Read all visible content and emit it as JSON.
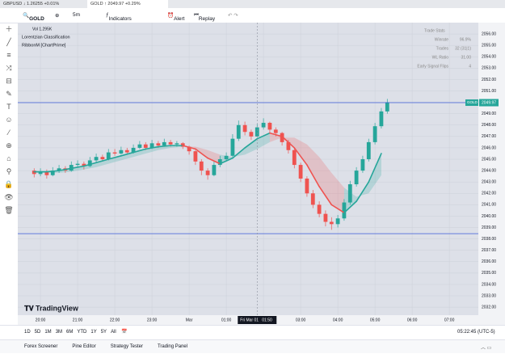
{
  "tabs": [
    {
      "label": "GBPUSD",
      "quote": "1.26255 +0.01%"
    },
    {
      "label": "GOLD",
      "quote": "2049.97 +0.29%"
    }
  ],
  "toolbar": {
    "symbol": "GOLD",
    "interval": "5m",
    "indicators": "Indicators",
    "alert": "Alert",
    "replay": "Replay"
  },
  "legend": {
    "volume": "Vol 1.295K",
    "indicator1": "Lorentzian Classification",
    "indicator2": "RibbonM [ChartPrime]"
  },
  "stats": {
    "title": "Trade Stats",
    "rows": [
      [
        "Winrate",
        "96.9%"
      ],
      [
        "Trades",
        "32 (31|1)"
      ],
      [
        "WL Ratio",
        "31.00"
      ],
      [
        "Early Signal Flips",
        "4"
      ]
    ]
  },
  "logo": "TradingView",
  "ranges": [
    "1D",
    "5D",
    "1M",
    "3M",
    "6M",
    "YTD",
    "1Y",
    "5Y",
    "All"
  ],
  "clock": "05:22:45 (UTC-5)",
  "panels": [
    "Forex Screener",
    "Pine Editor",
    "Strategy Tester",
    "Trading Panel"
  ],
  "chart_data": {
    "type": "candlestick",
    "symbol_badge": "GOLD",
    "last_price": 2049.97,
    "level": 2038.46,
    "crosshair": {
      "x": 5.83,
      "label": "Fri Mar 01",
      "time": "01:50"
    },
    "up_color": "#26a69a",
    "down_color": "#ef5350",
    "xlim": [
      -0.61,
      11.78
    ],
    "xticks": [
      {
        "value": 0,
        "label": "20:00"
      },
      {
        "value": 1,
        "label": "21:00"
      },
      {
        "value": 2,
        "label": "22:00"
      },
      {
        "value": 3,
        "label": "23:00"
      },
      {
        "value": 4,
        "label": "Mar"
      },
      {
        "value": 5,
        "label": "01:00"
      },
      {
        "value": 6,
        "label": "02:00"
      },
      {
        "value": 7,
        "label": "03:00"
      },
      {
        "value": 8,
        "label": "04:00"
      },
      {
        "value": 9,
        "label": "05:00"
      },
      {
        "value": 10,
        "label": "06:00"
      },
      {
        "value": 11,
        "label": "07:00"
      }
    ],
    "ylim": [
      2031.3,
      2057
    ],
    "yticks": [
      {
        "value": 2032,
        "label": "2032.00"
      },
      {
        "value": 2033,
        "label": "2033.00"
      },
      {
        "value": 2034,
        "label": "2034.00"
      },
      {
        "value": 2035,
        "label": "2035.00"
      },
      {
        "value": 2036,
        "label": "2036.00"
      },
      {
        "value": 2037,
        "label": "2037.00"
      },
      {
        "value": 2038,
        "label": "2038.00"
      },
      {
        "value": 2039,
        "label": "2039.00"
      },
      {
        "value": 2040,
        "label": "2040.00"
      },
      {
        "value": 2041,
        "label": "2041.00"
      },
      {
        "value": 2042,
        "label": "2042.00"
      },
      {
        "value": 2043,
        "label": "2043.00"
      },
      {
        "value": 2044,
        "label": "2044.00"
      },
      {
        "value": 2045,
        "label": "2045.00"
      },
      {
        "value": 2046,
        "label": "2046.00"
      },
      {
        "value": 2047,
        "label": "2047.00"
      },
      {
        "value": 2048,
        "label": "2048.00"
      },
      {
        "value": 2049,
        "label": "2049.00"
      },
      {
        "value": 2050,
        "label": "2050.00"
      },
      {
        "value": 2051,
        "label": "2051.00"
      },
      {
        "value": 2052,
        "label": "2052.00"
      },
      {
        "value": 2053,
        "label": "2053.00"
      },
      {
        "value": 2054,
        "label": "2054.00"
      },
      {
        "value": 2055,
        "label": "2055.00"
      },
      {
        "value": 2056,
        "label": "2056.00"
      }
    ],
    "candles": [
      [
        -0.17,
        2044.0,
        2044.2,
        2043.4,
        2043.7
      ],
      [
        0,
        2043.7,
        2044.2,
        2043.5,
        2043.9
      ],
      [
        0.17,
        2043.9,
        2044.1,
        2043.3,
        2043.6
      ],
      [
        0.33,
        2043.6,
        2044.3,
        2043.5,
        2044.0
      ],
      [
        0.5,
        2044.0,
        2044.5,
        2043.8,
        2044.2
      ],
      [
        0.67,
        2044.2,
        2044.4,
        2043.8,
        2044.0
      ],
      [
        0.83,
        2044.0,
        2044.8,
        2043.9,
        2044.5
      ],
      [
        1,
        2044.5,
        2044.9,
        2044.3,
        2044.6
      ],
      [
        1.17,
        2044.6,
        2044.8,
        2044.1,
        2044.4
      ],
      [
        1.33,
        2044.4,
        2045.2,
        2044.3,
        2044.9
      ],
      [
        1.5,
        2044.9,
        2045.5,
        2044.7,
        2045.2
      ],
      [
        1.67,
        2045.2,
        2045.4,
        2044.8,
        2045.0
      ],
      [
        1.83,
        2045.0,
        2045.9,
        2044.9,
        2045.6
      ],
      [
        2,
        2045.6,
        2045.9,
        2045.3,
        2045.5
      ],
      [
        2.17,
        2045.5,
        2046.1,
        2045.4,
        2045.8
      ],
      [
        2.33,
        2045.8,
        2046.0,
        2045.4,
        2045.6
      ],
      [
        2.5,
        2045.6,
        2046.3,
        2045.5,
        2046.0
      ],
      [
        2.67,
        2046.0,
        2046.6,
        2045.9,
        2046.3
      ],
      [
        2.83,
        2046.3,
        2046.5,
        2045.8,
        2046.0
      ],
      [
        3,
        2046.0,
        2046.7,
        2045.9,
        2046.4
      ],
      [
        3.17,
        2046.4,
        2046.6,
        2046.0,
        2046.2
      ],
      [
        3.33,
        2046.2,
        2046.8,
        2046.1,
        2046.5
      ],
      [
        3.5,
        2046.5,
        2046.7,
        2046.1,
        2046.3
      ],
      [
        3.67,
        2046.3,
        2046.6,
        2046.1,
        2046.4
      ],
      [
        3.83,
        2046.4,
        2046.5,
        2045.9,
        2046.1
      ],
      [
        4,
        2046.1,
        2046.2,
        2045.4,
        2045.7
      ],
      [
        4.17,
        2045.7,
        2045.8,
        2044.5,
        2044.8
      ],
      [
        4.33,
        2044.8,
        2045.0,
        2043.6,
        2044.0
      ],
      [
        4.5,
        2044.0,
        2044.2,
        2043.2,
        2043.6
      ],
      [
        4.67,
        2043.6,
        2044.8,
        2043.5,
        2044.5
      ],
      [
        4.83,
        2044.5,
        2045.3,
        2044.3,
        2045.0
      ],
      [
        5,
        2045.0,
        2045.6,
        2044.8,
        2045.3
      ],
      [
        5.17,
        2045.3,
        2047.2,
        2045.2,
        2046.8
      ],
      [
        5.33,
        2046.8,
        2048.4,
        2046.6,
        2048.0
      ],
      [
        5.5,
        2048.0,
        2048.3,
        2047.1,
        2047.4
      ],
      [
        5.67,
        2047.4,
        2047.6,
        2046.7,
        2047.0
      ],
      [
        5.83,
        2047.0,
        2048.1,
        2046.9,
        2047.8
      ],
      [
        6,
        2047.8,
        2048.6,
        2047.6,
        2048.2
      ],
      [
        6.17,
        2048.2,
        2048.3,
        2047.3,
        2047.6
      ],
      [
        6.33,
        2047.6,
        2047.8,
        2047.0,
        2047.3
      ],
      [
        6.5,
        2047.3,
        2047.4,
        2046.2,
        2046.5
      ],
      [
        6.67,
        2046.5,
        2046.7,
        2045.5,
        2045.8
      ],
      [
        6.83,
        2045.8,
        2046.0,
        2044.2,
        2044.5
      ],
      [
        7,
        2044.5,
        2044.7,
        2043.0,
        2043.3
      ],
      [
        7.17,
        2043.3,
        2043.5,
        2041.7,
        2042.0
      ],
      [
        7.33,
        2042.0,
        2042.3,
        2040.7,
        2041.0
      ],
      [
        7.5,
        2041.0,
        2041.3,
        2039.9,
        2040.2
      ],
      [
        7.67,
        2040.2,
        2040.5,
        2039.1,
        2039.5
      ],
      [
        7.83,
        2039.5,
        2039.9,
        2038.8,
        2039.3
      ],
      [
        8,
        2039.3,
        2040.1,
        2039.0,
        2039.8
      ],
      [
        8.17,
        2039.8,
        2041.5,
        2039.6,
        2041.2
      ],
      [
        8.33,
        2041.2,
        2043.1,
        2041.0,
        2042.8
      ],
      [
        8.5,
        2042.8,
        2044.3,
        2042.6,
        2044.0
      ],
      [
        8.67,
        2044.0,
        2045.3,
        2043.8,
        2045.0
      ],
      [
        8.83,
        2045.0,
        2046.8,
        2044.8,
        2046.5
      ],
      [
        9,
        2046.5,
        2048.2,
        2046.3,
        2047.9
      ],
      [
        9.17,
        2047.9,
        2049.5,
        2047.7,
        2049.2
      ],
      [
        9.33,
        2049.2,
        2050.3,
        2049.0,
        2050.0
      ]
    ],
    "kernel": {
      "x": [
        -0.17,
        0.17,
        0.5,
        0.83,
        1.17,
        1.5,
        1.83,
        2.17,
        2.5,
        2.83,
        3.17,
        3.5,
        3.83,
        4.17,
        4.5,
        4.83,
        5.17,
        5.5,
        5.83,
        6.17,
        6.5,
        6.83,
        7.17,
        7.5,
        7.83,
        8.17,
        8.5,
        8.83,
        9.17
      ],
      "values": [
        2043.9,
        2043.9,
        2044.0,
        2044.2,
        2044.4,
        2044.7,
        2045.0,
        2045.3,
        2045.6,
        2045.9,
        2046.1,
        2046.2,
        2046.2,
        2045.9,
        2045.1,
        2044.6,
        2045.1,
        2046.0,
        2046.8,
        2047.3,
        2047.0,
        2046.0,
        2044.5,
        2042.6,
        2041.0,
        2040.3,
        2041.3,
        2043.0,
        2045.5
      ],
      "ribbon": [
        2043.8,
        2043.8,
        2043.8,
        2043.9,
        2044.1,
        2044.3,
        2044.6,
        2044.9,
        2045.2,
        2045.5,
        2045.8,
        2046.0,
        2046.1,
        2046.1,
        2045.8,
        2045.4,
        2045.2,
        2045.4,
        2045.9,
        2046.5,
        2046.9,
        2046.9,
        2046.3,
        2045.2,
        2043.8,
        2042.5,
        2041.7,
        2042.0,
        2043.6
      ]
    }
  }
}
